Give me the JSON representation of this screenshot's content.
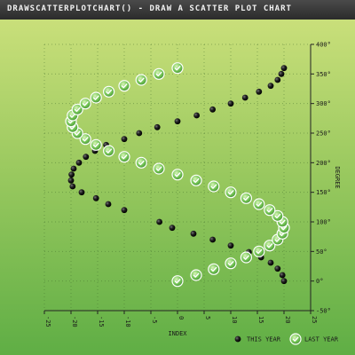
{
  "window": {
    "title": "DRAWSCATTERPLOTCHART() - DRAW A SCATTER PLOT CHART"
  },
  "colors": {
    "title_bar": "#333333",
    "background_top": "#c9df7a",
    "background_bottom": "#5fae45",
    "this_year": "#111111",
    "last_year_fill": "#79c85a",
    "last_year_ring": "#ffffff"
  },
  "chart_data": {
    "type": "scatter",
    "xlabel": "INDEX",
    "ylabel": "DEGREE",
    "xlim": [
      -25,
      25
    ],
    "ylim": [
      -50,
      400
    ],
    "x_ticks": [
      -25,
      -20,
      -15,
      -10,
      -5,
      0,
      5,
      10,
      15,
      20,
      25
    ],
    "y_ticks": [
      -50,
      0,
      50,
      100,
      150,
      200,
      250,
      300,
      350,
      400
    ],
    "y_tick_suffix": "°",
    "grid": true,
    "legend": "bottom-right",
    "series": [
      {
        "name": "THIS YEAR",
        "marker": "dark-ball",
        "points": [
          [
            20.0,
            0
          ],
          [
            19.7,
            10
          ],
          [
            18.8,
            21
          ],
          [
            17.5,
            31
          ],
          [
            15.7,
            40
          ],
          [
            13.4,
            49
          ],
          [
            10.0,
            60
          ],
          [
            6.6,
            70
          ],
          [
            3.0,
            80
          ],
          [
            -1.0,
            90
          ],
          [
            -3.4,
            100
          ],
          [
            -10.0,
            120
          ],
          [
            -13.0,
            130
          ],
          [
            -15.3,
            140
          ],
          [
            -18.0,
            150
          ],
          [
            -19.7,
            160
          ],
          [
            -20.0,
            170
          ],
          [
            -19.9,
            180
          ],
          [
            -19.5,
            190
          ],
          [
            -18.5,
            200
          ],
          [
            -17.2,
            210
          ],
          [
            -15.5,
            220
          ],
          [
            -13.4,
            230
          ],
          [
            -10.0,
            240
          ],
          [
            -7.2,
            250
          ],
          [
            -3.8,
            260
          ],
          [
            0.0,
            270
          ],
          [
            3.6,
            280
          ],
          [
            6.6,
            290
          ],
          [
            10.0,
            300
          ],
          [
            12.7,
            310
          ],
          [
            15.3,
            320
          ],
          [
            17.5,
            330
          ],
          [
            18.8,
            340
          ],
          [
            19.5,
            350
          ],
          [
            20.0,
            360
          ]
        ]
      },
      {
        "name": "LAST YEAR",
        "marker": "green-check",
        "points": [
          [
            0.0,
            0
          ],
          [
            3.5,
            10
          ],
          [
            6.8,
            20
          ],
          [
            10.0,
            30
          ],
          [
            12.9,
            40
          ],
          [
            15.3,
            50
          ],
          [
            17.3,
            60
          ],
          [
            18.8,
            70
          ],
          [
            19.7,
            80
          ],
          [
            20.0,
            90
          ],
          [
            19.7,
            100
          ],
          [
            18.8,
            110
          ],
          [
            17.3,
            120
          ],
          [
            15.3,
            130
          ],
          [
            12.9,
            140
          ],
          [
            10.0,
            150
          ],
          [
            6.8,
            160
          ],
          [
            3.5,
            170
          ],
          [
            0.0,
            180
          ],
          [
            -3.5,
            190
          ],
          [
            -6.8,
            200
          ],
          [
            -10.0,
            210
          ],
          [
            -12.9,
            220
          ],
          [
            -15.3,
            230
          ],
          [
            -17.3,
            240
          ],
          [
            -18.8,
            250
          ],
          [
            -19.7,
            260
          ],
          [
            -20.0,
            270
          ],
          [
            -19.7,
            280
          ],
          [
            -18.8,
            290
          ],
          [
            -17.3,
            300
          ],
          [
            -15.3,
            310
          ],
          [
            -12.9,
            320
          ],
          [
            -10.0,
            330
          ],
          [
            -6.8,
            340
          ],
          [
            -3.5,
            350
          ],
          [
            0.0,
            360
          ]
        ]
      }
    ]
  }
}
